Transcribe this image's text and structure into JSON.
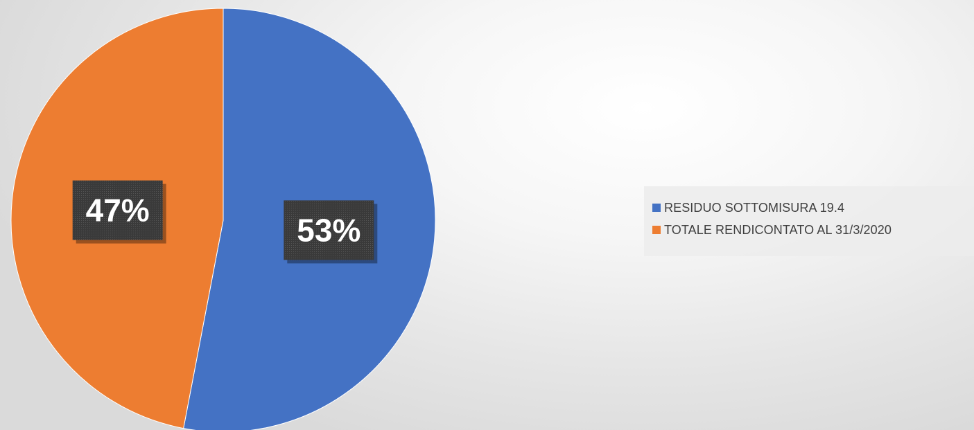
{
  "chart_data": {
    "type": "pie",
    "title": "",
    "categories": [
      "RESIDUO SOTTOMISURA 19.4",
      "TOTALE RENDICONTATO AL 31/3/2020"
    ],
    "values": [
      53,
      47
    ],
    "value_unit": "%",
    "data_labels": [
      "53%",
      "47%"
    ],
    "colors": [
      "#4472C4",
      "#ED7D31"
    ],
    "start_angle": "12 o'clock, clockwise",
    "legend": {
      "placement": "right",
      "entries": [
        "RESIDUO SOTTOMISURA 19.4",
        "TOTALE RENDICONTATO AL 31/3/2020"
      ]
    }
  }
}
